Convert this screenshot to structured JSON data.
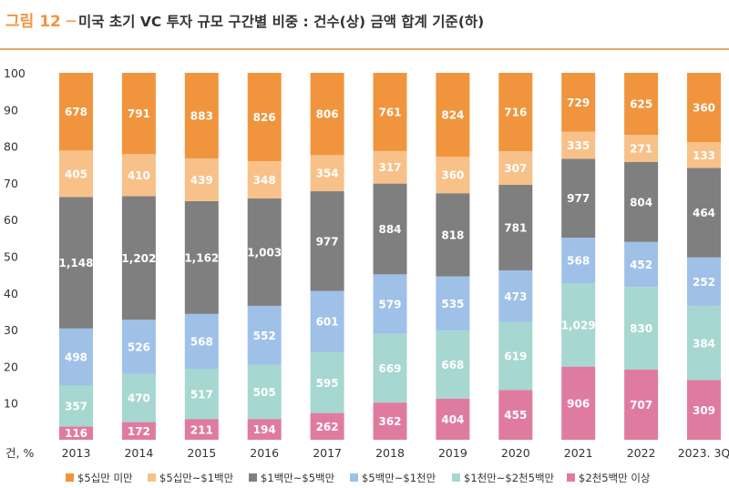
{
  "chart_data": {
    "type": "bar",
    "stacked": "percent",
    "title": "그림 12 ─ 미국 초기 VC 투자 규모 구간별 비중 : 건수(상) 금액 합계 기준(하)",
    "title_prefix": "그림 12 ─",
    "title_main": "미국 초기 VC 투자 규모 구간별 비중 : 건수(상) 금액 합계 기준(하)",
    "unit_label": "건, %",
    "ylim": [
      0,
      100
    ],
    "yticks": [
      10,
      20,
      30,
      40,
      50,
      60,
      70,
      80,
      90,
      100
    ],
    "grid": false,
    "legend_position": "bottom",
    "categories": [
      "2013",
      "2014",
      "2015",
      "2016",
      "2017",
      "2018",
      "2019",
      "2020",
      "2021",
      "2022",
      "2023. 3Q"
    ],
    "series": [
      {
        "name": "$2천5백만 이상",
        "color": "#e07ba0",
        "values": [
          116,
          172,
          211,
          194,
          262,
          362,
          404,
          455,
          906,
          707,
          309
        ]
      },
      {
        "name": "$1천만~$2천5백만",
        "color": "#a6d7d0",
        "values": [
          357,
          470,
          517,
          505,
          595,
          669,
          668,
          619,
          1029,
          830,
          384
        ]
      },
      {
        "name": "$5백만~$1천만",
        "color": "#9fc1e8",
        "values": [
          498,
          526,
          568,
          552,
          601,
          579,
          535,
          473,
          568,
          452,
          252
        ]
      },
      {
        "name": "$1백만~$5백만",
        "color": "#7f7f7f",
        "values": [
          1148,
          1202,
          1162,
          1003,
          977,
          884,
          818,
          781,
          977,
          804,
          464
        ]
      },
      {
        "name": "$5십만~$1백만",
        "color": "#f8c189",
        "values": [
          405,
          410,
          439,
          348,
          354,
          317,
          360,
          307,
          335,
          271,
          133
        ]
      },
      {
        "name": "$5십만 미만",
        "color": "#f0953d",
        "values": [
          678,
          791,
          883,
          826,
          806,
          761,
          824,
          716,
          729,
          625,
          360
        ]
      }
    ],
    "legend_order": [
      "$5십만 미만",
      "$5십만~$1백만",
      "$1백만~$5백만",
      "$5백만~$1천만",
      "$1천만~$2천5백만",
      "$2천5백만 이상"
    ],
    "colors": {
      "title_accent": "#f0953d",
      "title_text": "#333333",
      "axis_text": "#333333",
      "label_text": "#ffffff",
      "rule": "#e6a76a"
    }
  }
}
